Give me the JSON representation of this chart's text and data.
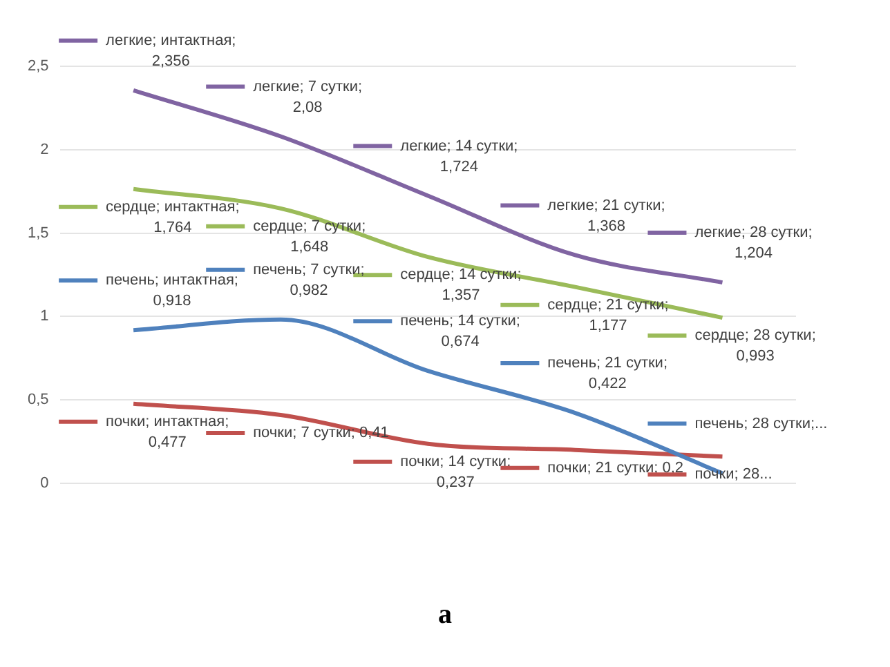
{
  "chart_data": {
    "type": "line",
    "categories": [
      null,
      null,
      null,
      null,
      null
    ],
    "series": [
      {
        "color": "#8064a2",
        "values": [
          2.356,
          2.08,
          1.724,
          1.368,
          1.204
        ],
        "value_labels": [
          "легкие; интактная; 2,356",
          "легкие; 7 сутки; 2,08",
          "легкие; 14 сутки; 1,724",
          "легкие; 21 сутки; 1,368",
          "легкие; 28 сутки; 1,204"
        ]
      },
      {
        "color": "#9bbb59",
        "values": [
          1.764,
          1.648,
          1.357,
          1.177,
          0.993
        ],
        "value_labels": [
          "сердце; интактная; 1,764",
          "сердце; 7 сутки; 1,648",
          "сердце; 14 сутки; 1,357",
          "сердце; 21 сутки; 1,177",
          "сердце; 28 сутки; 0,993"
        ]
      },
      {
        "color": "#4f81bd",
        "values": [
          0.918,
          0.982,
          0.674,
          0.422,
          0.06
        ],
        "value_labels": [
          "печень; интактная; 0,918",
          "печень; 7 сутки; 0,982",
          "печень; 14 сутки; 0,674",
          "печень; 21 сутки; 0,422",
          "печень; 28 сутки;..."
        ]
      },
      {
        "color": "#c0504d",
        "values": [
          0.477,
          0.41,
          0.237,
          0.2,
          0.16
        ],
        "value_labels": [
          "почки; интактная; 0,477",
          "почки; 7 сутки; 0,41",
          "почки; 14 сутки; 0,237",
          "почки; 21 сутки; 0,2",
          "почки; 28..."
        ]
      }
    ],
    "ylim": [
      0,
      2.5
    ],
    "yticks": [
      {
        "value": 0,
        "label": "0"
      },
      {
        "value": 0.5,
        "label": "0,5"
      },
      {
        "value": 1,
        "label": "1"
      },
      {
        "value": 1.5,
        "label": "1,5"
      },
      {
        "value": 2,
        "label": "2"
      },
      {
        "value": 2.5,
        "label": "2,5"
      }
    ],
    "grid": "y",
    "legend": false,
    "marker": "none",
    "line_style": "solid",
    "tick_labels": "y",
    "annotations": [
      "a"
    ]
  }
}
